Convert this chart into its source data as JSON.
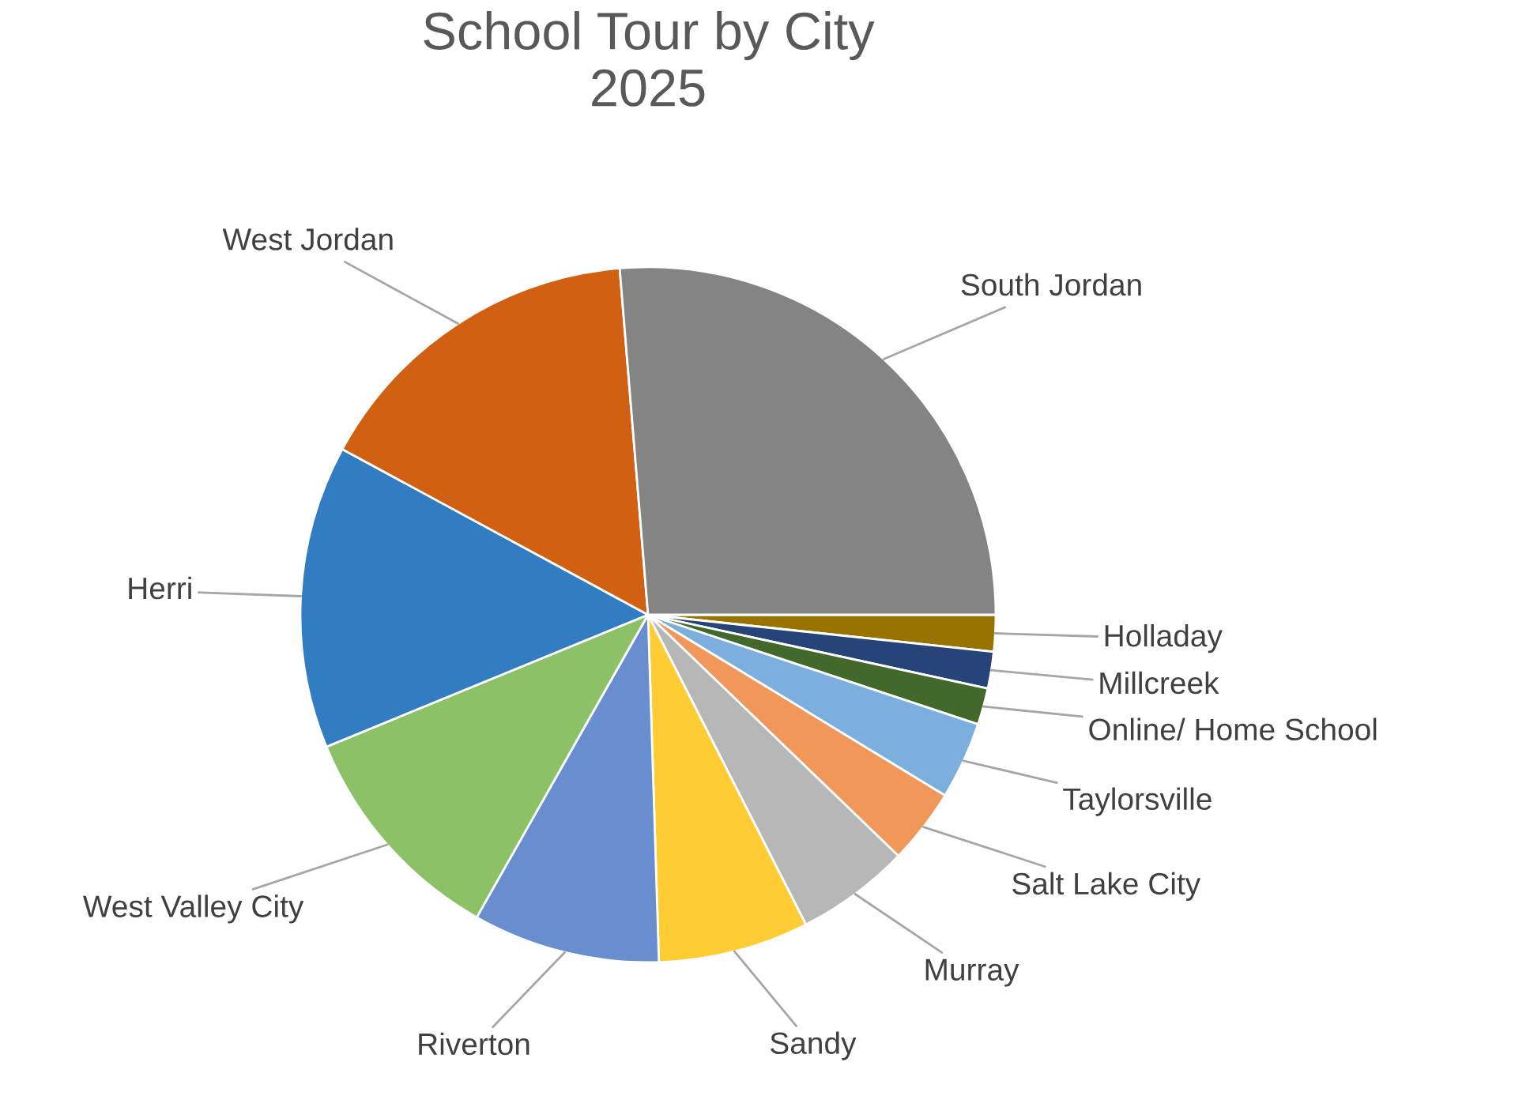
{
  "chart_data": {
    "type": "pie",
    "title": "School Tour by City\n2025",
    "categories": [
      "Holladay",
      "Millcreek",
      "Online/ Home School",
      "Taylorsville",
      "Salt Lake City",
      "Murray",
      "Sandy",
      "Riverton",
      "West Valley City",
      "Herri",
      "West Jordan",
      "South Jordan"
    ],
    "values": [
      1.7,
      1.7,
      1.7,
      3.6,
      3.5,
      5.3,
      7.0,
      8.7,
      10.6,
      14.1,
      15.8,
      26.3
    ],
    "colors": [
      "#997300",
      "#264478",
      "#43682b",
      "#7cafdd",
      "#f1975a",
      "#b7b7b7",
      "#ffcd33",
      "#698ed0",
      "#8cc168",
      "#327dc2",
      "#d26012",
      "#848484"
    ],
    "legend": false
  }
}
